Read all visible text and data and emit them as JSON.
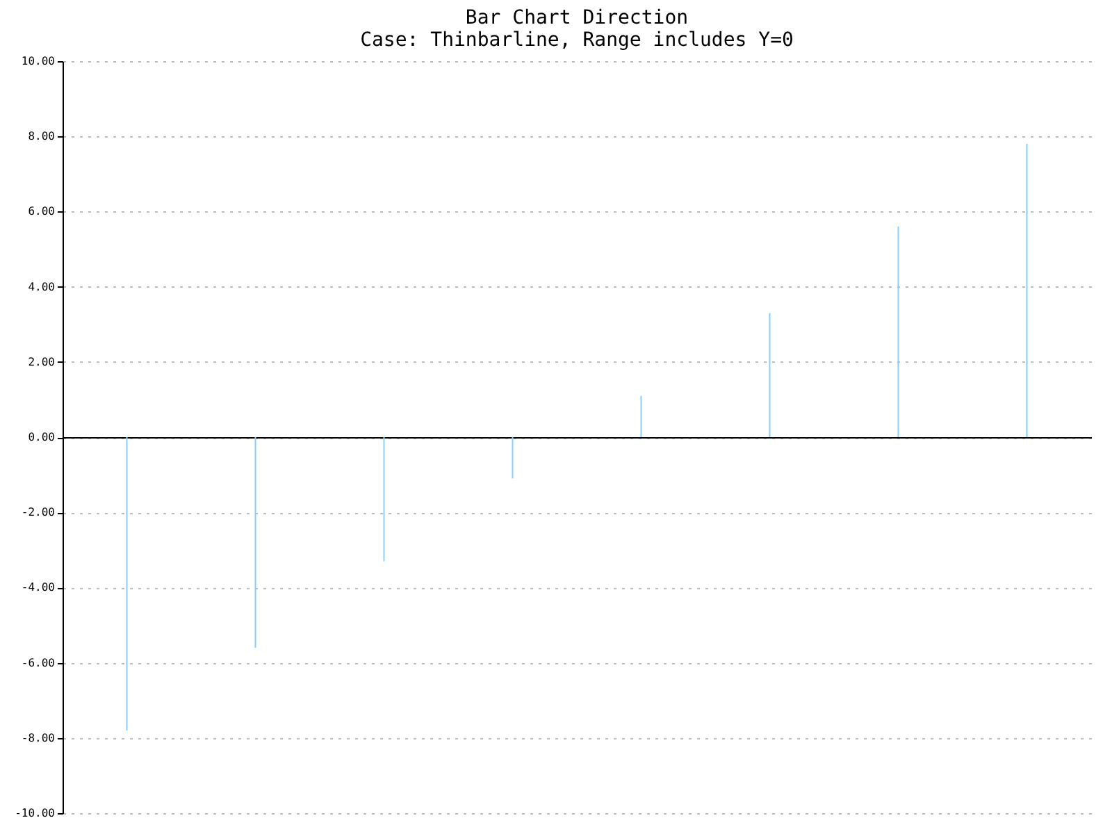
{
  "chart_data": {
    "type": "bar",
    "title": "Bar Chart Direction",
    "subtitle": "Case: Thinbarline, Range includes Y=0",
    "categories": [
      null,
      null,
      null,
      null,
      null,
      null,
      null,
      null
    ],
    "values": [
      -7.8,
      -5.6,
      -3.3,
      -1.1,
      1.1,
      3.3,
      5.6,
      7.8
    ],
    "color": "#87cefa",
    "ylim": [
      -10,
      10
    ],
    "yticks": [
      {
        "value": -10,
        "label": "-10.00"
      },
      {
        "value": -8,
        "label": "-8.00"
      },
      {
        "value": -6,
        "label": "-6.00"
      },
      {
        "value": -4,
        "label": "-4.00"
      },
      {
        "value": -2,
        "label": "-2.00"
      },
      {
        "value": 0,
        "label": "0.00"
      },
      {
        "value": 2,
        "label": "2.00"
      },
      {
        "value": 4,
        "label": "4.00"
      },
      {
        "value": 6,
        "label": "6.00"
      },
      {
        "value": 8,
        "label": "8.00"
      },
      {
        "value": 10,
        "label": "10.00"
      }
    ],
    "grid": "y",
    "line_style": "dotted",
    "tick_labels": "y"
  }
}
